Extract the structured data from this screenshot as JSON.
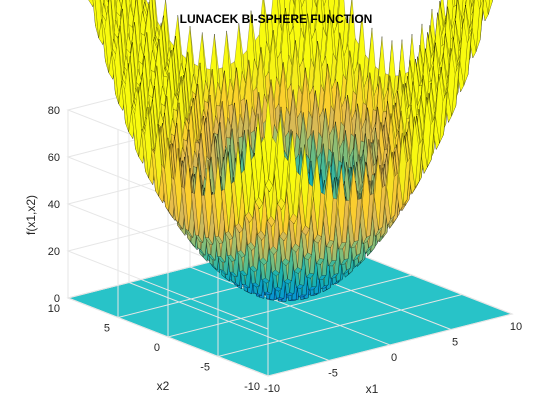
{
  "chart_data": {
    "type": "surface",
    "title": "LUNACEK BI-SPHERE FUNCTION",
    "xlabel": "x1",
    "ylabel": "x2",
    "zlabel": "f(x1,x2)",
    "xlim": [
      -10,
      10
    ],
    "ylim": [
      -10,
      10
    ],
    "zlim": [
      0,
      80
    ],
    "x_ticks": [
      -10,
      -5,
      0,
      5,
      10
    ],
    "y_ticks": [
      -10,
      -5,
      0,
      5,
      10
    ],
    "z_ticks": [
      0,
      20,
      40,
      60,
      80
    ],
    "function": "f(x1,x2) = min((x1-2.5)^2 + (x2-2.5)^2, 1 + 0.7*((x1+2.5)^2 + (x2+2.5)^2)) + 10*(2 - cos(2*pi*(x1-2.5)) - cos(2*pi*(x2-2.5)))",
    "grid": true,
    "colormap": "parula",
    "contour_projection_at_floor": true,
    "surface_edge_color": "#000000"
  }
}
